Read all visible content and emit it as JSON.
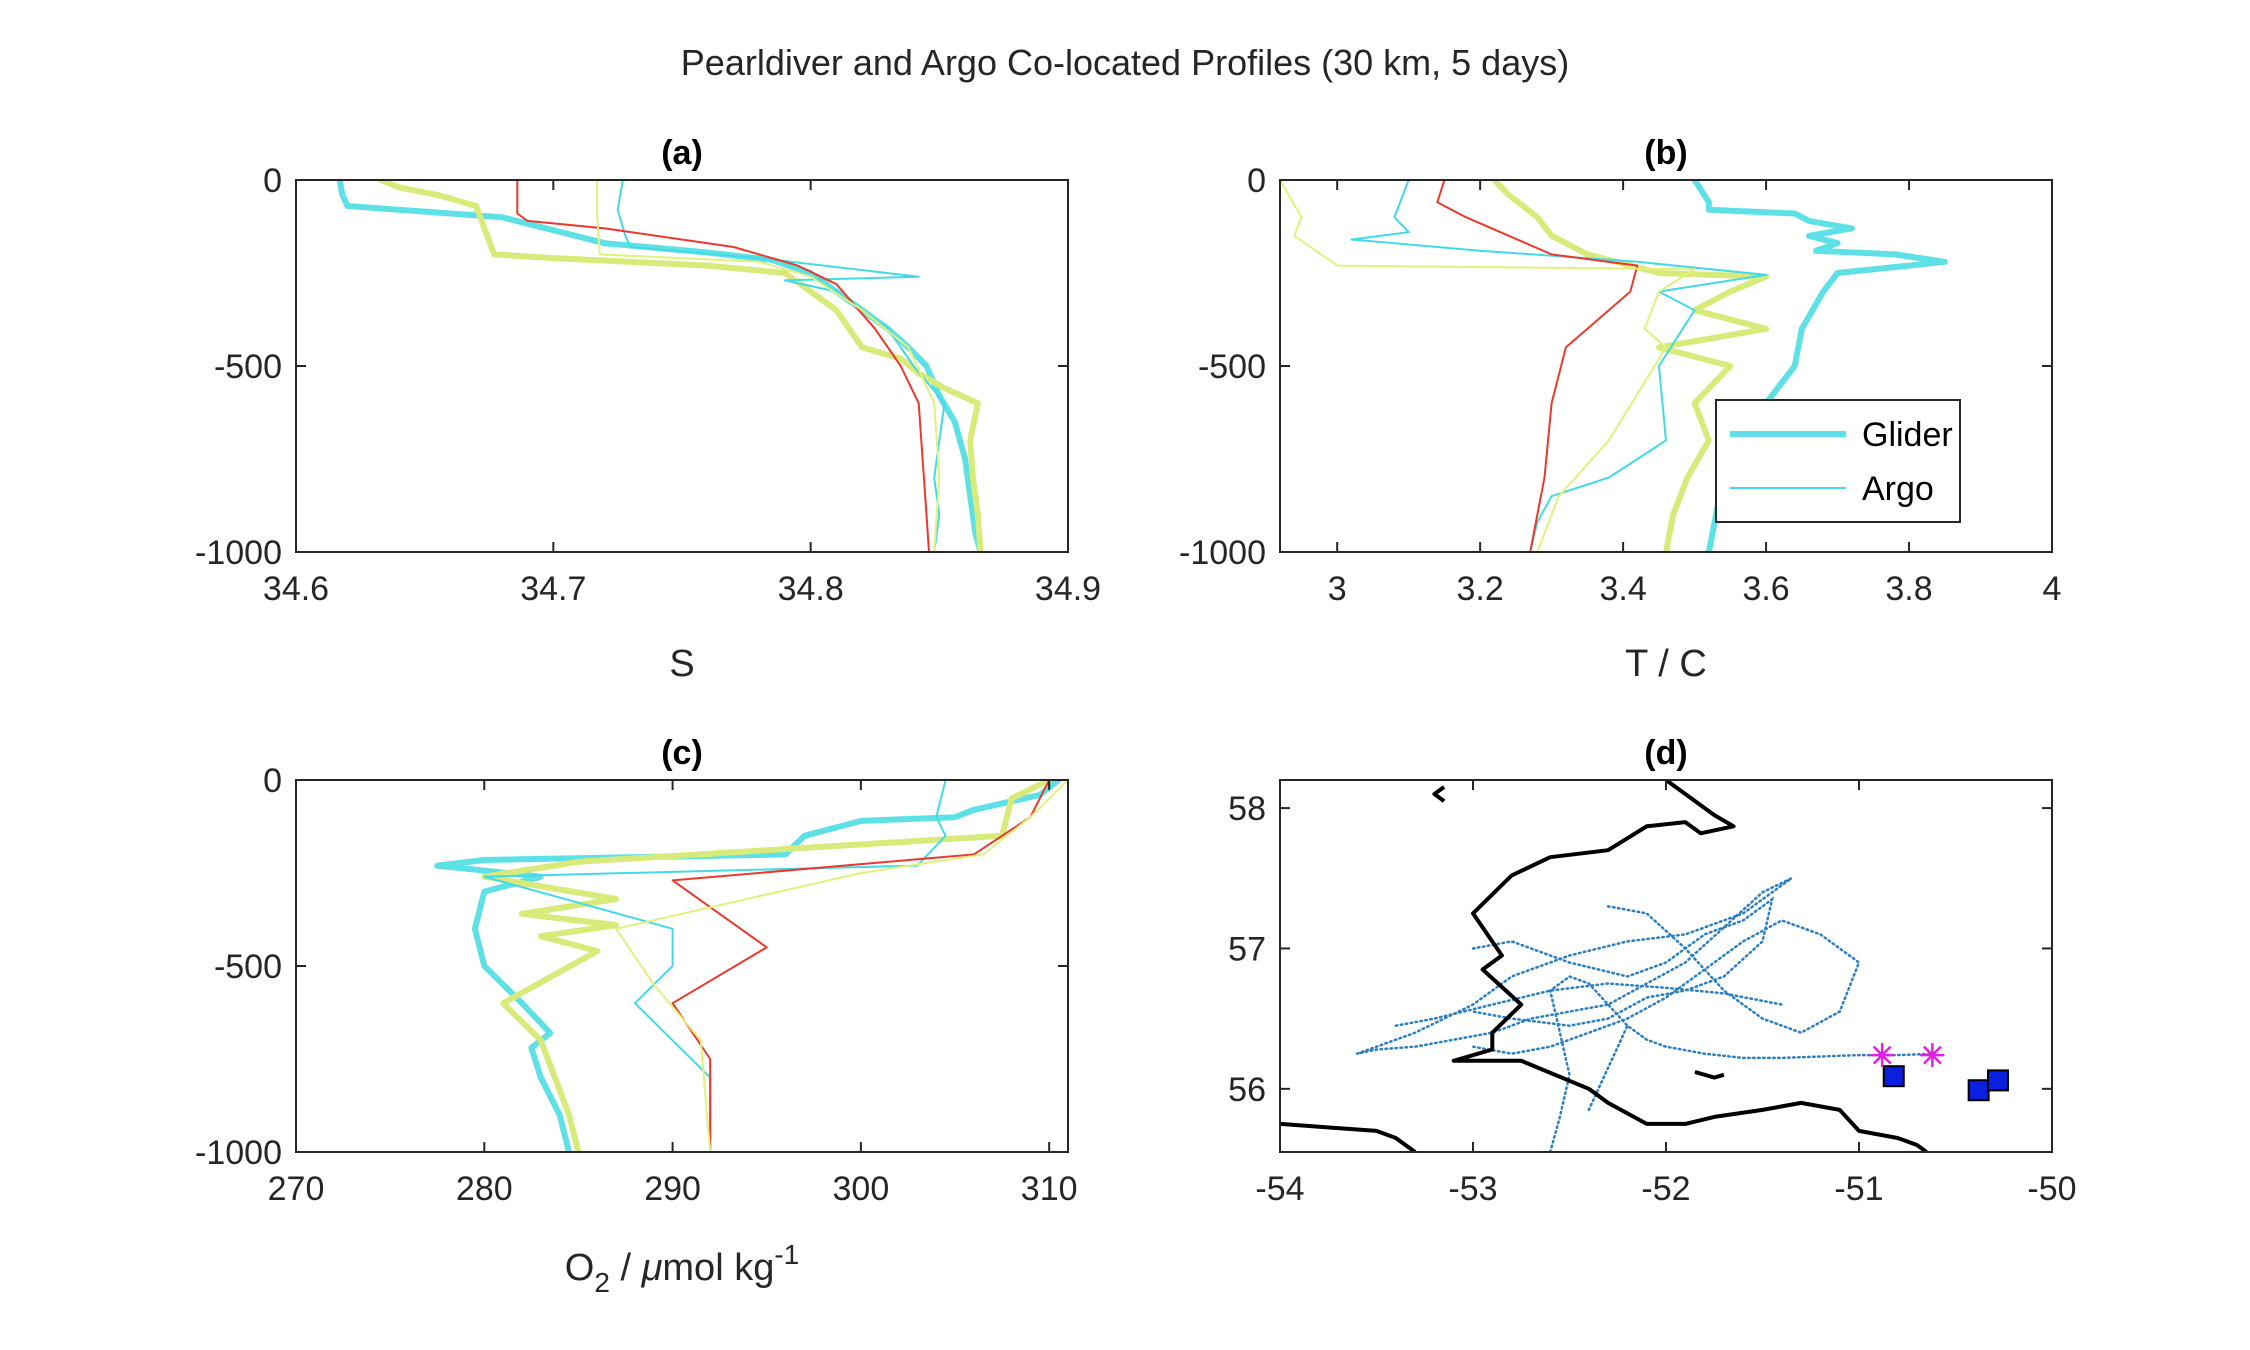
{
  "title": "Pearldiver and Argo Co-located Profiles (30 km, 5 days)",
  "colors": {
    "glider_cyan": "#5ee1e6",
    "glider_yellow": "#d8eb7a",
    "argo_cyan": "#44d9e6",
    "argo_red": "#e83a2d",
    "argo_yellow": "#e2f07e",
    "track_blue": "#2c7fc0",
    "contour": "#000000",
    "star": "#e020e0",
    "square_fill": "#0a1fe0"
  },
  "chart_data": [
    {
      "type": "line",
      "panel": "(a)",
      "title": "(a)",
      "xlabel": "S",
      "ylabel": "",
      "xlim": [
        34.6,
        34.9
      ],
      "ylim": [
        -1000,
        0
      ],
      "xticks": [
        "34.6",
        "34.7",
        "34.8",
        "34.9"
      ],
      "yticks": [
        "0",
        "-500",
        "-1000"
      ],
      "series": [
        {
          "name": "Glider",
          "color": "#5ee1e6",
          "width": 6,
          "x": [
            34.617,
            34.618,
            34.62,
            34.64,
            34.68,
            34.72,
            34.76,
            34.785,
            34.8,
            34.81,
            34.82,
            34.83,
            34.838,
            34.845,
            34.85,
            34.856,
            34.86,
            34.862,
            34.864,
            34.866
          ],
          "y": [
            0,
            -40,
            -70,
            -80,
            -100,
            -170,
            -195,
            -215,
            -250,
            -300,
            -350,
            -400,
            -450,
            -500,
            -580,
            -650,
            -750,
            -850,
            -950,
            -1000
          ]
        },
        {
          "name": "",
          "color": "#d8eb7a",
          "width": 6,
          "x": [
            34.633,
            34.64,
            34.655,
            34.67,
            34.677,
            34.7,
            34.76,
            34.79,
            34.8,
            34.81,
            34.82,
            34.835,
            34.842,
            34.852,
            34.865,
            34.862,
            34.863,
            34.865,
            34.866
          ],
          "y": [
            0,
            -20,
            -40,
            -70,
            -200,
            -210,
            -230,
            -250,
            -300,
            -350,
            -450,
            -480,
            -520,
            -560,
            -600,
            -700,
            -800,
            -900,
            -1000
          ]
        },
        {
          "name": "Argo",
          "color": "#44d9e6",
          "width": 2,
          "x": [
            34.727,
            34.725,
            34.728,
            34.73,
            34.78,
            34.842,
            34.79,
            34.81,
            34.83,
            34.84,
            34.852,
            34.85,
            34.848,
            34.85,
            34.848
          ],
          "y": [
            0,
            -80,
            -150,
            -180,
            -210,
            -260,
            -270,
            -300,
            -400,
            -500,
            -600,
            -700,
            -800,
            -900,
            -1000
          ]
        },
        {
          "name": "",
          "color": "#e83a2d",
          "width": 2,
          "x": [
            34.686,
            34.686,
            34.69,
            34.72,
            34.77,
            34.795,
            34.81,
            34.825,
            34.835,
            34.842,
            34.843,
            34.845,
            34.846
          ],
          "y": [
            0,
            -90,
            -110,
            -130,
            -180,
            -230,
            -280,
            -400,
            -500,
            -600,
            -700,
            -900,
            -1000
          ]
        },
        {
          "name": "",
          "color": "#e2f07e",
          "width": 2,
          "x": [
            34.717,
            34.717,
            34.718,
            34.78,
            34.8,
            34.82,
            34.838,
            34.848,
            34.85,
            34.848
          ],
          "y": [
            0,
            -90,
            -200,
            -220,
            -260,
            -350,
            -450,
            -600,
            -800,
            -1000
          ]
        }
      ]
    },
    {
      "type": "line",
      "panel": "(b)",
      "title": "(b)",
      "xlabel": "T / C",
      "ylabel": "",
      "xlim": [
        2.92,
        4.0
      ],
      "ylim": [
        -1000,
        0
      ],
      "xticks": [
        "3",
        "3.2",
        "3.4",
        "3.6",
        "3.8",
        "4"
      ],
      "yticks": [
        "0",
        "-500",
        "-1000"
      ],
      "legend": {
        "position": "lower-right",
        "entries": [
          "Glider",
          "Argo"
        ]
      },
      "series": [
        {
          "name": "Glider",
          "color": "#5ee1e6",
          "width": 6,
          "x": [
            3.5,
            3.52,
            3.52,
            3.64,
            3.66,
            3.72,
            3.66,
            3.7,
            3.67,
            3.78,
            3.85,
            3.7,
            3.68,
            3.65,
            3.64,
            3.6,
            3.56,
            3.54,
            3.52
          ],
          "y": [
            0,
            -60,
            -80,
            -90,
            -110,
            -130,
            -150,
            -170,
            -190,
            -200,
            -220,
            -250,
            -300,
            -400,
            -500,
            -600,
            -700,
            -800,
            -1000
          ]
        },
        {
          "name": "",
          "color": "#d8eb7a",
          "width": 6,
          "x": [
            3.22,
            3.24,
            3.28,
            3.3,
            3.35,
            3.45,
            3.6,
            3.55,
            3.5,
            3.6,
            3.45,
            3.55,
            3.5,
            3.52,
            3.49,
            3.47,
            3.46
          ],
          "y": [
            0,
            -40,
            -100,
            -150,
            -200,
            -250,
            -260,
            -300,
            -350,
            -400,
            -450,
            -500,
            -600,
            -700,
            -800,
            -900,
            -1000
          ]
        },
        {
          "name": "Argo",
          "color": "#44d9e6",
          "width": 2,
          "x": [
            3.1,
            3.08,
            3.1,
            3.02,
            3.2,
            3.42,
            3.6,
            3.45,
            3.5,
            3.45,
            3.46,
            3.38,
            3.3,
            3.28,
            3.27
          ],
          "y": [
            0,
            -100,
            -140,
            -160,
            -190,
            -220,
            -255,
            -300,
            -350,
            -500,
            -700,
            -800,
            -850,
            -920,
            -1000
          ]
        },
        {
          "name": "",
          "color": "#e83a2d",
          "width": 2,
          "x": [
            3.15,
            3.14,
            3.18,
            3.3,
            3.42,
            3.41,
            3.32,
            3.3,
            3.29,
            3.28,
            3.27
          ],
          "y": [
            0,
            -60,
            -100,
            -200,
            -230,
            -300,
            -450,
            -600,
            -800,
            -900,
            -1000
          ]
        },
        {
          "name": "",
          "color": "#e2f07e",
          "width": 2,
          "x": [
            2.92,
            2.95,
            2.94,
            3.0,
            3.5,
            3.45,
            3.43,
            3.46,
            3.38,
            3.31,
            3.28
          ],
          "y": [
            0,
            -100,
            -150,
            -230,
            -240,
            -300,
            -400,
            -450,
            -700,
            -850,
            -1000
          ]
        }
      ]
    },
    {
      "type": "line",
      "panel": "(c)",
      "title": "(c)",
      "xlabel": "O",
      "xlabel_parts": [
        "O",
        "2",
        " / ",
        "μ",
        "mol kg",
        "-1"
      ],
      "ylabel": "",
      "xlim": [
        270,
        311
      ],
      "ylim": [
        -1000,
        0
      ],
      "xticks": [
        "270",
        "280",
        "290",
        "300",
        "310"
      ],
      "yticks": [
        "0",
        "-500",
        "-1000"
      ],
      "series": [
        {
          "name": "Glider",
          "color": "#5ee1e6",
          "width": 6,
          "x": [
            310.5,
            309.5,
            306,
            305,
            300,
            297,
            296,
            280,
            277.5,
            283,
            280,
            279.5,
            280,
            282,
            283.5,
            282.5,
            283,
            284,
            284.5
          ],
          "y": [
            0,
            -40,
            -80,
            -100,
            -110,
            -150,
            -200,
            -215,
            -230,
            -260,
            -300,
            -400,
            -500,
            -600,
            -680,
            -720,
            -800,
            -900,
            -1000
          ]
        },
        {
          "name": "",
          "color": "#d8eb7a",
          "width": 6,
          "x": [
            310,
            308,
            307.5,
            285,
            280,
            287,
            282,
            287,
            283,
            286,
            281,
            283,
            284.5,
            285
          ],
          "y": [
            0,
            -50,
            -150,
            -220,
            -260,
            -320,
            -360,
            -390,
            -420,
            -460,
            -600,
            -700,
            -900,
            -1000
          ]
        },
        {
          "name": "Argo",
          "color": "#44d9e6",
          "width": 2,
          "x": [
            304.5,
            304,
            304.5,
            303,
            280,
            290,
            290,
            288,
            292,
            292
          ],
          "y": [
            0,
            -100,
            -150,
            -230,
            -260,
            -400,
            -500,
            -600,
            -800,
            -1000
          ]
        },
        {
          "name": "",
          "color": "#e83a2d",
          "width": 2,
          "x": [
            310,
            309,
            306,
            290,
            295,
            290,
            292,
            292
          ],
          "y": [
            0,
            -100,
            -200,
            -270,
            -450,
            -600,
            -750,
            -1000
          ]
        },
        {
          "name": "",
          "color": "#e2f07e",
          "width": 2,
          "x": [
            311,
            309,
            306.5,
            300,
            287,
            289,
            291.5,
            292
          ],
          "y": [
            0,
            -100,
            -200,
            -250,
            -400,
            -550,
            -700,
            -1000
          ]
        }
      ]
    },
    {
      "type": "scatter",
      "panel": "(d)",
      "title": "(d)",
      "xlabel": "",
      "ylabel": "",
      "xlim": [
        -54,
        -50
      ],
      "ylim": [
        55.55,
        58.2
      ],
      "xticks": [
        "-54",
        "-53",
        "-52",
        "-51",
        "-50"
      ],
      "yticks": [
        "56",
        "57",
        "58"
      ],
      "contours": [
        {
          "x": [
            -54,
            -53.7,
            -53.5,
            -53.4,
            -53.3
          ],
          "y": [
            55.75,
            55.72,
            55.7,
            55.65,
            55.55
          ]
        },
        {
          "x": [
            -53.15,
            -53.2,
            -53.15
          ],
          "y": [
            58.15,
            58.1,
            58.05
          ]
        },
        {
          "x": [
            -52.0,
            -51.9,
            -51.75,
            -51.65,
            -51.82,
            -51.9,
            -52.1,
            -52.3,
            -52.6,
            -52.8,
            -53.0,
            -52.85,
            -52.95,
            -52.75,
            -52.9,
            -52.9,
            -53.1,
            -52.75,
            -52.4,
            -52.3,
            -52.1,
            -51.9,
            -51.75,
            -51.5,
            -51.3,
            -51.1,
            -51.0,
            -50.8,
            -50.7,
            -50.65
          ],
          "y": [
            58.2,
            58.1,
            57.95,
            57.87,
            57.82,
            57.9,
            57.87,
            57.7,
            57.65,
            57.52,
            57.25,
            56.95,
            56.85,
            56.6,
            56.4,
            56.28,
            56.2,
            56.2,
            56.0,
            55.9,
            55.75,
            55.75,
            55.8,
            55.85,
            55.9,
            55.85,
            55.7,
            55.65,
            55.6,
            55.55
          ]
        },
        {
          "x": [
            -51.85,
            -51.75,
            -51.7
          ],
          "y": [
            56.12,
            56.08,
            56.1
          ]
        }
      ],
      "track": [
        {
          "x": [
            -53.6,
            -53.3,
            -53.0,
            -52.8,
            -52.5,
            -52.2,
            -51.9,
            -51.6,
            -51.35,
            -51.5,
            -51.7,
            -51.9,
            -52.1,
            -52.3,
            -52.5,
            -52.7,
            -52.9,
            -53.1,
            -53.3,
            -53.5,
            -53.6
          ],
          "y": [
            56.25,
            56.4,
            56.6,
            56.8,
            56.95,
            57.05,
            57.1,
            57.25,
            57.5,
            57.4,
            57.15,
            56.9,
            56.75,
            56.6,
            56.55,
            56.5,
            56.4,
            56.35,
            56.3,
            56.28,
            56.25
          ]
        },
        {
          "x": [
            -53.0,
            -52.8,
            -52.5,
            -52.2,
            -52.0,
            -51.8,
            -51.6,
            -51.45,
            -51.5,
            -51.7,
            -51.9,
            -52.1,
            -52.3,
            -52.5,
            -52.8,
            -53.0
          ],
          "y": [
            57.0,
            57.05,
            56.9,
            56.8,
            56.9,
            57.1,
            57.2,
            57.35,
            57.05,
            56.8,
            56.7,
            56.65,
            56.5,
            56.45,
            56.5,
            56.55
          ]
        },
        {
          "x": [
            -52.6,
            -52.55,
            -52.5,
            -52.55,
            -52.6,
            -52.5,
            -52.4,
            -52.3,
            -52.2,
            -52.1,
            -52.0,
            -51.8,
            -51.6,
            -51.4,
            -51.2,
            -51.0,
            -50.8,
            -50.6
          ],
          "y": [
            55.55,
            55.8,
            56.1,
            56.4,
            56.7,
            56.8,
            56.75,
            56.6,
            56.45,
            56.35,
            56.3,
            56.25,
            56.22,
            56.22,
            56.23,
            56.24,
            56.24,
            56.25
          ]
        },
        {
          "x": [
            -52.3,
            -52.1,
            -51.9,
            -51.7,
            -51.5,
            -51.3,
            -51.1,
            -51.0,
            -51.2,
            -51.4,
            -51.6,
            -51.8,
            -52.0,
            -52.2,
            -52.4,
            -52.6,
            -52.8,
            -53.0
          ],
          "y": [
            57.3,
            57.25,
            57.0,
            56.7,
            56.5,
            56.4,
            56.55,
            56.9,
            57.1,
            57.2,
            57.05,
            56.85,
            56.65,
            56.5,
            56.4,
            56.3,
            56.25,
            56.3
          ]
        },
        {
          "x": [
            -52.4,
            -52.35,
            -52.3,
            -52.25,
            -52.2
          ],
          "y": [
            55.85,
            56.0,
            56.15,
            56.3,
            56.45
          ]
        },
        {
          "x": [
            -53.4,
            -53.2,
            -52.9,
            -52.6,
            -52.3,
            -52.0,
            -51.7,
            -51.4
          ],
          "y": [
            56.45,
            56.5,
            56.6,
            56.7,
            56.75,
            56.72,
            56.68,
            56.6
          ]
        }
      ],
      "stars": [
        {
          "x": -50.88,
          "y": 56.24
        },
        {
          "x": -50.62,
          "y": 56.24
        }
      ],
      "squares": [
        {
          "x": -50.82,
          "y": 56.09
        },
        {
          "x": -50.38,
          "y": 55.99
        },
        {
          "x": -50.28,
          "y": 56.06
        }
      ]
    }
  ]
}
